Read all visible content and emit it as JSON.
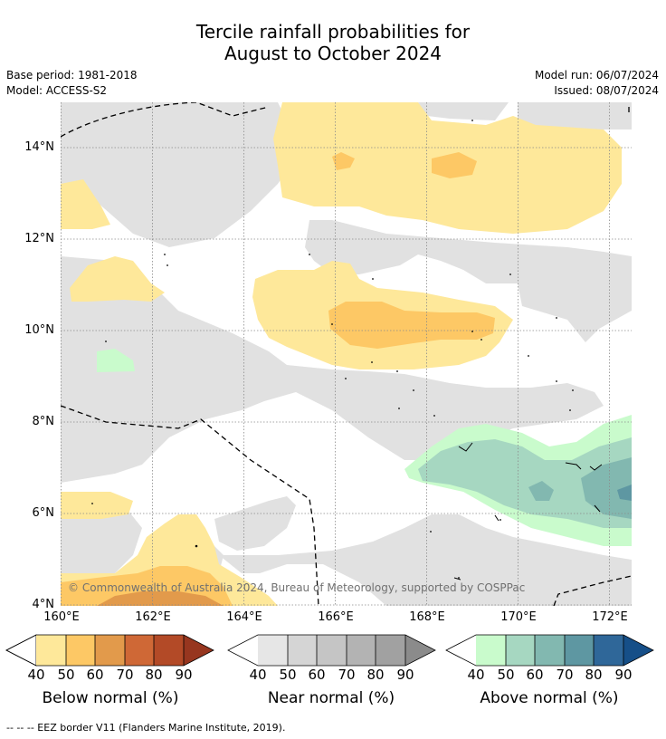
{
  "title": {
    "line1": "Tercile rainfall probabilities for",
    "line2": "August to October 2024"
  },
  "meta": {
    "base_period": "Base period: 1981-2018",
    "model": "Model: ACCESS-S2",
    "model_run": "Model run: 06/07/2024",
    "issued": "Issued: 08/07/2024"
  },
  "map": {
    "lat_ticks": [
      "14°N",
      "12°N",
      "10°N",
      "8°N",
      "6°N",
      "4°N"
    ],
    "lon_ticks": [
      "160°E",
      "162°E",
      "164°E",
      "166°E",
      "168°E",
      "170°E",
      "172°E"
    ],
    "copyright": "© Commonwealth of Australia 2024, Bureau of Meteorology, supported by COSPPac"
  },
  "colorbars": {
    "below": {
      "title": "Below normal (%)",
      "labels": [
        "40",
        "50",
        "60",
        "70",
        "80",
        "90"
      ],
      "colors": [
        "#fee89a",
        "#fdc865",
        "#e29a4b",
        "#cf6836",
        "#b34a27",
        "#97361f"
      ]
    },
    "near": {
      "title": "Near normal (%)",
      "labels": [
        "40",
        "50",
        "60",
        "70",
        "80",
        "90"
      ],
      "colors": [
        "#e6e6e6",
        "#d5d5d5",
        "#c5c5c5",
        "#b3b3b3",
        "#a1a1a1",
        "#8b8b8b"
      ]
    },
    "above": {
      "title": "Above normal (%)",
      "labels": [
        "40",
        "50",
        "60",
        "70",
        "80",
        "90"
      ],
      "colors": [
        "#c9fbcc",
        "#a6d7c1",
        "#82b8b0",
        "#5e97a2",
        "#2f6799",
        "#164f88"
      ]
    }
  },
  "footer": {
    "legend_text": "--  --  -- EEZ border V11 (Flanders Marine Institute, 2019)."
  }
}
